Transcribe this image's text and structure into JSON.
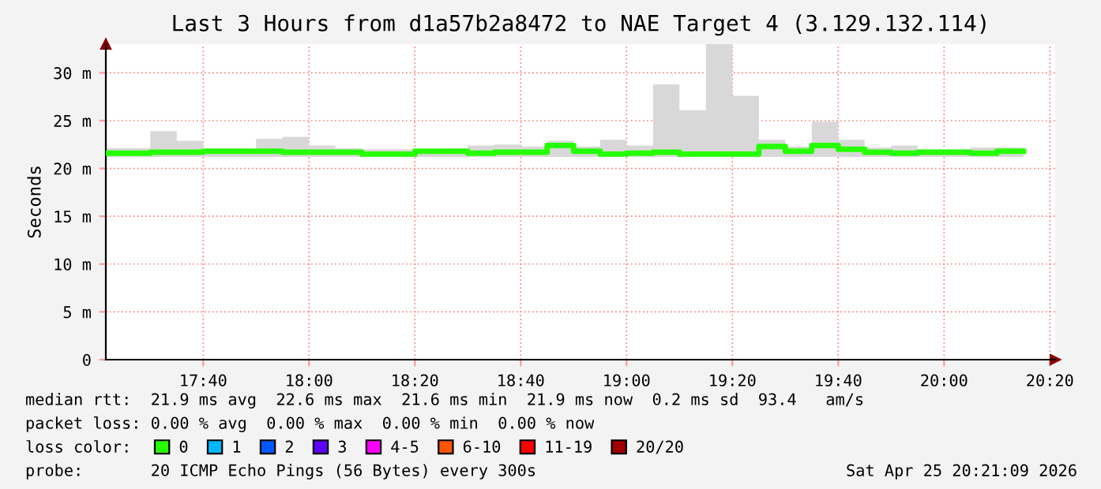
{
  "chart_data": {
    "type": "step",
    "title": "Last 3 Hours from d1a57b2a8472 to NAE Target 4 (3.129.132.114)",
    "ylabel": "Seconds",
    "legend_title": "loss color:",
    "legend": "bottom",
    "grid": true,
    "x": [
      17.36,
      17.5,
      17.5833,
      17.6667,
      17.75,
      17.8333,
      17.9167,
      18.0,
      18.0833,
      18.1667,
      18.25,
      18.3333,
      18.4167,
      18.5,
      18.5833,
      18.6667,
      18.75,
      18.8333,
      18.9167,
      19.0,
      19.0833,
      19.1667,
      19.25,
      19.3333,
      19.4167,
      19.5,
      19.5833,
      19.6667,
      19.75,
      19.8333,
      19.9167,
      20.0,
      20.0833,
      20.1667,
      20.25
    ],
    "xlim": [
      17.36,
      20.35
    ],
    "xticks": [
      {
        "value": 17.6667,
        "label": "17:40"
      },
      {
        "value": 18.0,
        "label": "18:00"
      },
      {
        "value": 18.3333,
        "label": "18:20"
      },
      {
        "value": 18.6667,
        "label": "18:40"
      },
      {
        "value": 19.0,
        "label": "19:00"
      },
      {
        "value": 19.3333,
        "label": "19:20"
      },
      {
        "value": 19.6667,
        "label": "19:40"
      },
      {
        "value": 20.0,
        "label": "20:00"
      },
      {
        "value": 20.3333,
        "label": "20:20"
      }
    ],
    "ylim": [
      0,
      33
    ],
    "yticks": [
      0,
      {
        "value": 5,
        "label": "5 m"
      },
      {
        "value": 10,
        "label": "10 m"
      },
      {
        "value": 15,
        "label": "15 m"
      },
      {
        "value": 20,
        "label": "20 m"
      },
      {
        "value": 25,
        "label": "25 m"
      },
      {
        "value": 30,
        "label": "30 m"
      }
    ],
    "series": [
      {
        "name": "0",
        "color": "#26ff00",
        "values": [
          21.6,
          21.7,
          21.7,
          21.8,
          21.8,
          21.8,
          21.7,
          21.7,
          21.7,
          21.5,
          21.5,
          21.8,
          21.8,
          21.6,
          21.7,
          21.7,
          22.4,
          21.8,
          21.5,
          21.6,
          21.7,
          21.5,
          21.5,
          21.5,
          22.3,
          21.8,
          22.4,
          22.0,
          21.7,
          21.6,
          21.7,
          21.7,
          21.6,
          21.8,
          21.8
        ],
        "lower": [
          21.2,
          21.2,
          21.2,
          21.2,
          21.2,
          21.2,
          21.2,
          21.2,
          21.2,
          21.2,
          21.2,
          21.2,
          21.2,
          21.2,
          21.2,
          21.2,
          21.2,
          21.2,
          21.2,
          21.2,
          21.2,
          21.2,
          21.2,
          21.2,
          21.2,
          21.2,
          21.2,
          21.2,
          21.2,
          21.2,
          21.2,
          21.2,
          21.2,
          21.2,
          21.2
        ],
        "upper": [
          22.1,
          23.9,
          22.9,
          22.1,
          22.1,
          23.1,
          23.3,
          22.4,
          22.1,
          22.0,
          22.0,
          22.0,
          22.1,
          22.4,
          22.5,
          22.3,
          22.9,
          22.3,
          23.0,
          22.4,
          28.8,
          26.1,
          33,
          27.6,
          23.0,
          22.3,
          24.9,
          23.0,
          22.2,
          22.4,
          22.0,
          22.0,
          22.2,
          22.2,
          22.2
        ]
      },
      {
        "name": "1",
        "color": "#00b8ff",
        "values": [
          null,
          null,
          null,
          null,
          null,
          null,
          null,
          null,
          null,
          null,
          null,
          null,
          null,
          null,
          null,
          null,
          null,
          null,
          null,
          null,
          null,
          null,
          null,
          null,
          null,
          null,
          null,
          null,
          null,
          null,
          null,
          null,
          null,
          null,
          null
        ]
      },
      {
        "name": "2",
        "color": "#0059ff",
        "values": [
          null,
          null,
          null,
          null,
          null,
          null,
          null,
          null,
          null,
          null,
          null,
          null,
          null,
          null,
          null,
          null,
          null,
          null,
          null,
          null,
          null,
          null,
          null,
          null,
          null,
          null,
          null,
          null,
          null,
          null,
          null,
          null,
          null,
          null,
          null
        ]
      },
      {
        "name": "3",
        "color": "#5e00ff",
        "values": [
          null,
          null,
          null,
          null,
          null,
          null,
          null,
          null,
          null,
          null,
          null,
          null,
          null,
          null,
          null,
          null,
          null,
          null,
          null,
          null,
          null,
          null,
          null,
          null,
          null,
          null,
          null,
          null,
          null,
          null,
          null,
          null,
          null,
          null,
          null
        ]
      },
      {
        "name": "4-5",
        "color": "#ff00ff",
        "values": [
          null,
          null,
          null,
          null,
          null,
          null,
          null,
          null,
          null,
          null,
          null,
          null,
          null,
          null,
          null,
          null,
          null,
          null,
          null,
          null,
          null,
          null,
          null,
          null,
          null,
          null,
          null,
          null,
          null,
          null,
          null,
          null,
          null,
          null,
          null
        ]
      },
      {
        "name": "6-10",
        "color": "#ff5500",
        "values": [
          null,
          null,
          null,
          null,
          null,
          null,
          null,
          null,
          null,
          null,
          null,
          null,
          null,
          null,
          null,
          null,
          null,
          null,
          null,
          null,
          null,
          null,
          null,
          null,
          null,
          null,
          null,
          null,
          null,
          null,
          null,
          null,
          null,
          null,
          null
        ]
      },
      {
        "name": "11-19",
        "color": "#ff0000",
        "values": [
          null,
          null,
          null,
          null,
          null,
          null,
          null,
          null,
          null,
          null,
          null,
          null,
          null,
          null,
          null,
          null,
          null,
          null,
          null,
          null,
          null,
          null,
          null,
          null,
          null,
          null,
          null,
          null,
          null,
          null,
          null,
          null,
          null,
          null,
          null
        ]
      },
      {
        "name": "20/20",
        "color": "#a10000",
        "values": [
          null,
          null,
          null,
          null,
          null,
          null,
          null,
          null,
          null,
          null,
          null,
          null,
          null,
          null,
          null,
          null,
          null,
          null,
          null,
          null,
          null,
          null,
          null,
          null,
          null,
          null,
          null,
          null,
          null,
          null,
          null,
          null,
          null,
          null,
          null
        ]
      }
    ],
    "annotations": [
      "median rtt:  21.9 ms avg  22.6 ms max  21.6 ms min  21.9 ms now  0.2 ms sd  93.4   am/s",
      "packet loss: 0.00 % avg  0.00 % max  0.00 % min  0.00 % now",
      "probe:       20 ICMP Echo Pings (56 Bytes) every 300s",
      "Sat Apr 25 20:21:09 2026"
    ]
  }
}
